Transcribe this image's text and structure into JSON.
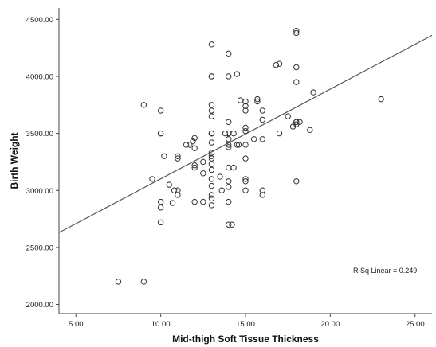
{
  "chart_data": {
    "type": "scatter",
    "xlabel": "Mid-thigh Soft Tissue Thickness",
    "ylabel": "Birth Weight",
    "xlim": [
      4.0,
      26.0
    ],
    "ylim": [
      1920,
      4600
    ],
    "x_ticks": [
      5,
      10,
      15,
      20,
      25
    ],
    "x_tick_labels": [
      "5.00",
      "10.00",
      "15.00",
      "20.00",
      "25.00"
    ],
    "y_ticks": [
      2000,
      2500,
      3000,
      3500,
      4000,
      4500
    ],
    "y_tick_labels": [
      "2000.00",
      "2500.00",
      "3000.00",
      "3500.00",
      "4000.00",
      "4500.00"
    ],
    "grid": false,
    "legend": "none",
    "annotation": "R Sq Linear = 0.249",
    "fit_line": {
      "x": [
        4.0,
        26.0
      ],
      "y": [
        2630,
        4360
      ]
    },
    "marker_color": "#333333",
    "line_color": "#555555",
    "points": [
      [
        7.5,
        2200
      ],
      [
        9.0,
        2200
      ],
      [
        9.0,
        3750
      ],
      [
        9.5,
        3100
      ],
      [
        10.0,
        3700
      ],
      [
        10.0,
        3500
      ],
      [
        10.0,
        3500
      ],
      [
        10.0,
        2900
      ],
      [
        10.0,
        2850
      ],
      [
        10.0,
        2720
      ],
      [
        10.2,
        3300
      ],
      [
        10.5,
        3050
      ],
      [
        10.7,
        2890
      ],
      [
        10.8,
        3000
      ],
      [
        11.0,
        3000
      ],
      [
        11.0,
        3280
      ],
      [
        11.0,
        3300
      ],
      [
        11.0,
        2960
      ],
      [
        11.5,
        3400
      ],
      [
        11.7,
        3400
      ],
      [
        11.9,
        3430
      ],
      [
        12.0,
        3370
      ],
      [
        12.0,
        3460
      ],
      [
        12.0,
        3220
      ],
      [
        12.0,
        3200
      ],
      [
        12.0,
        2900
      ],
      [
        12.5,
        3250
      ],
      [
        12.5,
        3150
      ],
      [
        12.5,
        2900
      ],
      [
        13.0,
        4280
      ],
      [
        13.0,
        4000
      ],
      [
        13.0,
        4000
      ],
      [
        13.0,
        3750
      ],
      [
        13.0,
        3700
      ],
      [
        13.0,
        3650
      ],
      [
        13.0,
        3500
      ],
      [
        13.0,
        3500
      ],
      [
        13.0,
        3500
      ],
      [
        13.0,
        3420
      ],
      [
        13.0,
        3330
      ],
      [
        13.0,
        3300
      ],
      [
        13.0,
        3280
      ],
      [
        13.0,
        3230
      ],
      [
        13.0,
        3180
      ],
      [
        13.0,
        3100
      ],
      [
        13.0,
        3040
      ],
      [
        13.0,
        2960
      ],
      [
        13.0,
        2930
      ],
      [
        13.0,
        2870
      ],
      [
        13.5,
        3120
      ],
      [
        13.6,
        3000
      ],
      [
        13.8,
        3500
      ],
      [
        14.0,
        4200
      ],
      [
        14.0,
        4000
      ],
      [
        14.0,
        3600
      ],
      [
        14.0,
        3500
      ],
      [
        14.0,
        3500
      ],
      [
        14.0,
        3450
      ],
      [
        14.0,
        3400
      ],
      [
        14.0,
        3380
      ],
      [
        14.0,
        3200
      ],
      [
        14.0,
        3080
      ],
      [
        14.0,
        3030
      ],
      [
        14.0,
        2900
      ],
      [
        14.0,
        2700
      ],
      [
        14.2,
        2700
      ],
      [
        14.3,
        3500
      ],
      [
        14.3,
        3200
      ],
      [
        14.5,
        4020
      ],
      [
        14.5,
        3400
      ],
      [
        14.6,
        3400
      ],
      [
        14.7,
        3790
      ],
      [
        15.0,
        3780
      ],
      [
        15.0,
        3740
      ],
      [
        15.0,
        3700
      ],
      [
        15.0,
        3550
      ],
      [
        15.0,
        3520
      ],
      [
        15.0,
        3400
      ],
      [
        15.0,
        3280
      ],
      [
        15.0,
        3100
      ],
      [
        15.0,
        3080
      ],
      [
        15.0,
        3000
      ],
      [
        15.5,
        3450
      ],
      [
        15.7,
        3800
      ],
      [
        15.7,
        3780
      ],
      [
        16.0,
        3700
      ],
      [
        16.0,
        3620
      ],
      [
        16.0,
        3450
      ],
      [
        16.0,
        3000
      ],
      [
        16.0,
        2960
      ],
      [
        16.8,
        4100
      ],
      [
        17.0,
        4110
      ],
      [
        17.0,
        3500
      ],
      [
        17.5,
        3650
      ],
      [
        18.0,
        4400
      ],
      [
        18.0,
        4380
      ],
      [
        18.0,
        4080
      ],
      [
        18.0,
        3950
      ],
      [
        18.0,
        3600
      ],
      [
        18.0,
        3580
      ],
      [
        18.0,
        3600
      ],
      [
        18.0,
        3080
      ],
      [
        17.8,
        3560
      ],
      [
        18.2,
        3600
      ],
      [
        18.8,
        3530
      ],
      [
        19.0,
        3860
      ],
      [
        23.0,
        3800
      ]
    ]
  }
}
